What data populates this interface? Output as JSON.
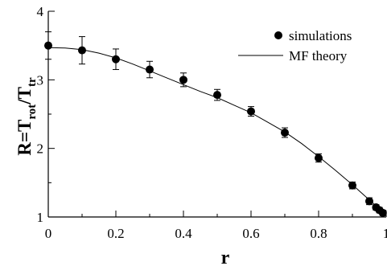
{
  "chart_data": {
    "type": "scatter",
    "xlabel": "r",
    "ylabel": {
      "base": "R=T",
      "sub1": "rot",
      "mid": "/T",
      "sub2": "tr"
    },
    "xlim": [
      0,
      1
    ],
    "ylim": [
      1,
      4
    ],
    "x_ticks": [
      0,
      0.2,
      0.4,
      0.6,
      0.8,
      1
    ],
    "x_tick_labels": [
      "0",
      "0.2",
      "0.4",
      "0.6",
      "0.8",
      "1"
    ],
    "y_ticks": [
      1,
      2,
      3,
      4
    ],
    "y_tick_labels": [
      "1",
      "2",
      "3",
      "4"
    ],
    "grid": false,
    "legend_position": "top-right",
    "series": [
      {
        "name": "simulations",
        "kind": "points",
        "color": "#000000",
        "x": [
          0.0,
          0.1,
          0.2,
          0.3,
          0.4,
          0.5,
          0.6,
          0.7,
          0.8,
          0.9,
          0.95,
          0.97,
          0.98,
          0.99
        ],
        "y": [
          3.5,
          3.43,
          3.3,
          3.15,
          3.0,
          2.78,
          2.54,
          2.23,
          1.86,
          1.46,
          1.23,
          1.14,
          1.1,
          1.06
        ],
        "err": [
          0.2,
          0.2,
          0.15,
          0.12,
          0.1,
          0.08,
          0.07,
          0.07,
          0.06,
          0.05,
          0.05,
          0.04,
          0.04,
          0.04
        ]
      },
      {
        "name": "MF theory",
        "kind": "line",
        "color": "#000000",
        "x": [
          0,
          0.05,
          0.1,
          0.15,
          0.2,
          0.25,
          0.3,
          0.35,
          0.4,
          0.45,
          0.5,
          0.55,
          0.6,
          0.65,
          0.7,
          0.75,
          0.8,
          0.85,
          0.9,
          0.95,
          1.0
        ],
        "y": [
          3.47,
          3.465,
          3.44,
          3.39,
          3.32,
          3.23,
          3.13,
          3.03,
          2.93,
          2.83,
          2.74,
          2.63,
          2.52,
          2.38,
          2.24,
          2.07,
          1.88,
          1.68,
          1.47,
          1.25,
          1.03
        ]
      }
    ]
  }
}
